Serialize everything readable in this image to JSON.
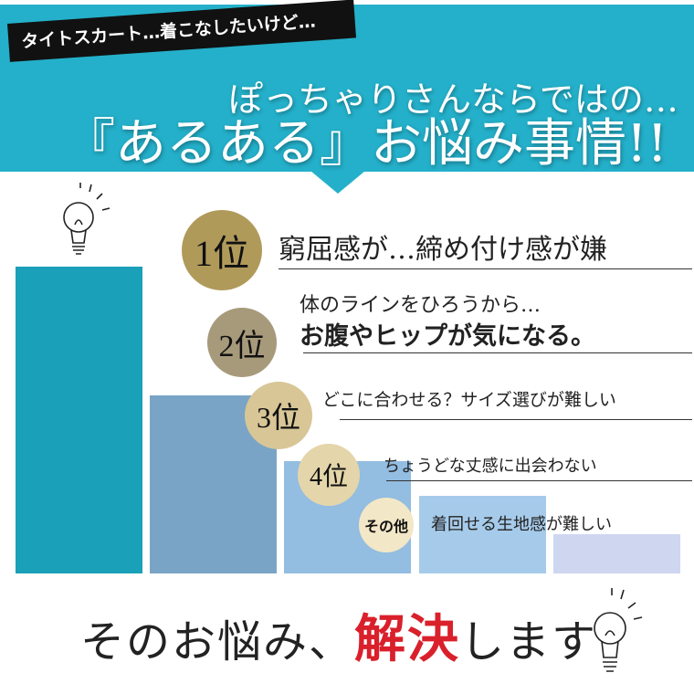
{
  "header": {
    "tag": "タイトスカート…着こなしたいけど…",
    "subtitle": "ぽっちゃりさんならではの…",
    "title": "『あるある』お悩み事情!!",
    "color": "#24b0ca"
  },
  "ranking": [
    {
      "rank": "1位",
      "line1": "",
      "line2": "窮屈感が…締め付け感が嫌",
      "circle_color": "#b09a5a",
      "bar_color": "#1aa0b9"
    },
    {
      "rank": "2位",
      "line1": "体のラインをひろうから…",
      "line2": "お腹やヒップが気になる。",
      "circle_color": "#a79a7b",
      "bar_color": "#7aa4c6"
    },
    {
      "rank": "3位",
      "line1": "",
      "line2": "どこに合わせる？サイズ選びが難しい",
      "circle_color": "#d8c697",
      "bar_color": "#93bde1"
    },
    {
      "rank": "4位",
      "line1": "",
      "line2": "ちょうどな丈感に出会わない",
      "circle_color": "#e4d5aa",
      "bar_color": "#a6cbea"
    },
    {
      "rank": "その他",
      "line1": "",
      "line2": "着回せる生地感が難しい",
      "circle_color": "#f2e7c6",
      "bar_color": "#cfd6f0"
    }
  ],
  "closing": {
    "before": "そのお悩み、",
    "highlight": "解決",
    "after": "します",
    "highlight_color": "#d9202b"
  },
  "icons": [
    "lightbulb-icon",
    "lightbulb-icon"
  ]
}
